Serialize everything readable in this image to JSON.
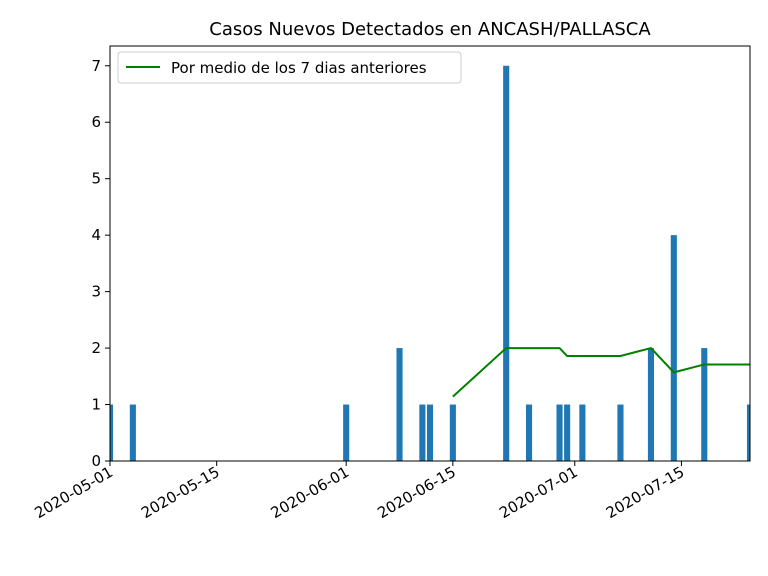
{
  "chart_data": {
    "type": "bar",
    "title": "Casos Nuevos Detectados en ANCASH/PALLASCA",
    "xlabel": "",
    "ylabel": "",
    "xlim": [
      "2020-05-01",
      "2020-07-24"
    ],
    "ylim": [
      0,
      7.35
    ],
    "x_ticks": [
      "2020-05-01",
      "2020-05-15",
      "2020-06-01",
      "2020-06-15",
      "2020-07-01",
      "2020-07-15"
    ],
    "y_ticks": [
      0,
      1,
      2,
      3,
      4,
      5,
      6,
      7
    ],
    "legend": {
      "placement": "top-left",
      "entries": [
        "Por medio de los 7 dias anteriores"
      ]
    },
    "colors": {
      "bars": "#1f77b4",
      "line": "#008000"
    },
    "bars": [
      {
        "date": "2020-05-01",
        "value": 1
      },
      {
        "date": "2020-05-04",
        "value": 1
      },
      {
        "date": "2020-06-01",
        "value": 1
      },
      {
        "date": "2020-06-08",
        "value": 2
      },
      {
        "date": "2020-06-11",
        "value": 1
      },
      {
        "date": "2020-06-12",
        "value": 1
      },
      {
        "date": "2020-06-15",
        "value": 1
      },
      {
        "date": "2020-06-22",
        "value": 7
      },
      {
        "date": "2020-06-25",
        "value": 1
      },
      {
        "date": "2020-06-29",
        "value": 1
      },
      {
        "date": "2020-06-30",
        "value": 1
      },
      {
        "date": "2020-07-02",
        "value": 1
      },
      {
        "date": "2020-07-07",
        "value": 1
      },
      {
        "date": "2020-07-11",
        "value": 2
      },
      {
        "date": "2020-07-14",
        "value": 4
      },
      {
        "date": "2020-07-18",
        "value": 2
      },
      {
        "date": "2020-07-24",
        "value": 1
      }
    ],
    "series": [
      {
        "name": "Por medio de los 7 dias anteriores",
        "type": "line",
        "points": [
          {
            "date": "2020-06-15",
            "value": 1.14
          },
          {
            "date": "2020-06-22",
            "value": 2.0
          },
          {
            "date": "2020-06-29",
            "value": 2.0
          },
          {
            "date": "2020-06-30",
            "value": 1.86
          },
          {
            "date": "2020-07-07",
            "value": 1.86
          },
          {
            "date": "2020-07-11",
            "value": 2.0
          },
          {
            "date": "2020-07-14",
            "value": 1.57
          },
          {
            "date": "2020-07-18",
            "value": 1.71
          },
          {
            "date": "2020-07-24",
            "value": 1.71
          }
        ]
      }
    ]
  }
}
